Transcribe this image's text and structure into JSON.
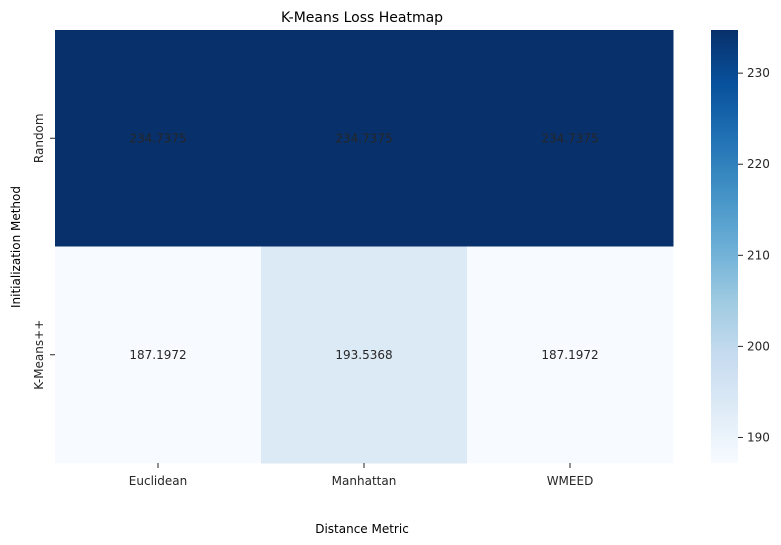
{
  "chart_data": {
    "type": "heatmap",
    "title": "K-Means Loss Heatmap",
    "xlabel": "Distance Metric",
    "ylabel": "Initialization Method",
    "x_categories": [
      "Euclidean",
      "Manhattan",
      "WMEED"
    ],
    "y_categories": [
      "Random",
      "K-Means++"
    ],
    "values": [
      [
        234.7375,
        234.7375,
        234.7375
      ],
      [
        187.1972,
        193.5368,
        187.1972
      ]
    ],
    "value_labels": [
      [
        "234.7375",
        "234.7375",
        "234.7375"
      ],
      [
        "187.1972",
        "193.5368",
        "187.1972"
      ]
    ],
    "colormap": "Blues",
    "colormap_stops": [
      "#f7fbff",
      "#deebf7",
      "#c6dbef",
      "#9ecae1",
      "#6baed6",
      "#4292c6",
      "#2171b5",
      "#08519c",
      "#08306b"
    ],
    "vmin": 187.1972,
    "vmax": 234.7375,
    "colorbar": {
      "ticks": [
        190,
        200,
        210,
        220,
        230
      ],
      "tick_labels": [
        "190",
        "200",
        "210",
        "220",
        "230"
      ]
    },
    "annotation_colors": {
      "dark": "#ffffff",
      "light": "#262626"
    }
  }
}
